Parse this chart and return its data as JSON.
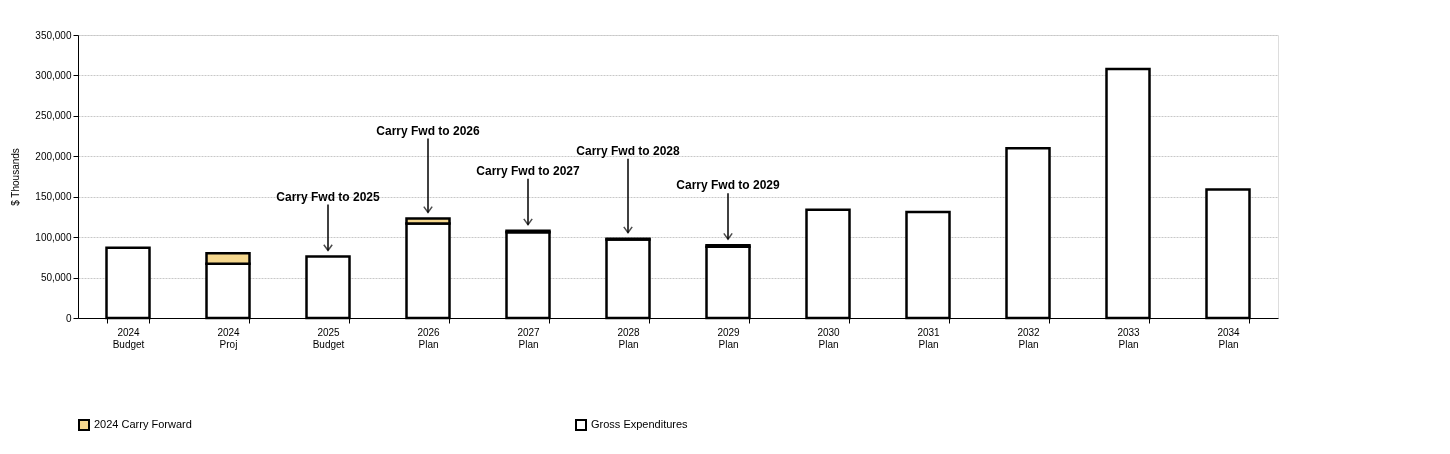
{
  "chart_data": {
    "type": "bar",
    "stacked": true,
    "ylabel": "$ Thousands",
    "categories": [
      "2024 Budget",
      "2024 Proj",
      "2025 Budget",
      "2026 Plan",
      "2027 Plan",
      "2028 Plan",
      "2029 Plan",
      "2030 Plan",
      "2031 Plan",
      "2032 Plan",
      "2033 Plan",
      "2034 Plan"
    ],
    "series": [
      {
        "name": "Gross Expenditures",
        "color": "#ffffff",
        "values": [
          87000,
          67000,
          76000,
          117000,
          106000,
          97000,
          88000,
          134000,
          131000,
          210000,
          308000,
          159000
        ]
      },
      {
        "name": "2024 Carry Forward",
        "color": "#f5d78e",
        "values": [
          null,
          13000,
          null,
          6000,
          2000,
          1000,
          2000,
          null,
          null,
          null,
          null,
          null
        ]
      }
    ],
    "ylim": [
      0,
      350000
    ],
    "yticks": [
      0,
      {
        "value": 50000,
        "label": "50,000"
      },
      {
        "value": 100000,
        "label": "100,000"
      },
      {
        "value": 150000,
        "label": "150,000"
      },
      {
        "value": 200000,
        "label": "200,000"
      },
      {
        "value": 250000,
        "label": "250,000"
      },
      {
        "value": 300000,
        "label": "300,000"
      },
      {
        "value": 350000,
        "label": "350,000"
      }
    ],
    "grid": "y",
    "legend": "bottom",
    "annotations": [
      {
        "text": "Carry Fwd to 2025",
        "x": "2025 Budget",
        "y": 76000
      },
      {
        "text": "Carry Fwd to 2026",
        "x": "2026 Plan",
        "y": 123000
      },
      {
        "text": "Carry Fwd to 2027",
        "x": "2027 Plan",
        "y": 108000
      },
      {
        "text": "Carry Fwd to 2028",
        "x": "2028 Plan",
        "y": 98000
      },
      {
        "text": "Carry Fwd to 2029",
        "x": "2029 Plan",
        "y": 90000
      }
    ]
  }
}
